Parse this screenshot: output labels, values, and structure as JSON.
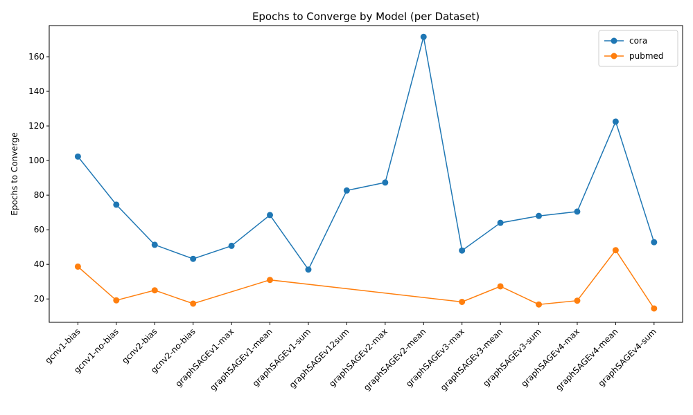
{
  "chart_data": {
    "type": "line",
    "title": "Epochs to Converge by Model (per Dataset)",
    "xlabel": "",
    "ylabel": "Epochs to Converge",
    "categories": [
      "gcnv1-bias",
      "gcnv1-no-bias",
      "gcnv2-bias",
      "gcnv2-no-bias",
      "graphSAGEv1-max",
      "graphSAGEv1-mean",
      "graphSAGEv1-sum",
      "graphSAGEv12sum",
      "graphSAGEv2-max",
      "graphSAGEv2-mean",
      "graphSAGEv3-max",
      "graphSAGEv3-mean",
      "graphSAGEv3-sum",
      "graphSAGEv4-max",
      "graphSAGEv4-mean",
      "graphSAGEv4-sum"
    ],
    "ylim": [
      6.5,
      178
    ],
    "yticks": [
      20,
      40,
      60,
      80,
      100,
      120,
      140,
      160
    ],
    "grid": false,
    "legend_position": "top-right",
    "series": [
      {
        "name": "cora",
        "color": "#1f77b4",
        "values": [
          102.3,
          74.5,
          51.3,
          43.2,
          50.7,
          68.5,
          37.0,
          82.7,
          87.3,
          171.5,
          48.0,
          64.0,
          68.0,
          70.5,
          122.5,
          52.8
        ]
      },
      {
        "name": "pubmed",
        "color": "#ff7f0e",
        "values": [
          38.7,
          19.2,
          25.0,
          17.3,
          null,
          31.0,
          null,
          null,
          null,
          null,
          18.3,
          27.3,
          16.8,
          19.0,
          48.2,
          14.5
        ]
      }
    ]
  }
}
